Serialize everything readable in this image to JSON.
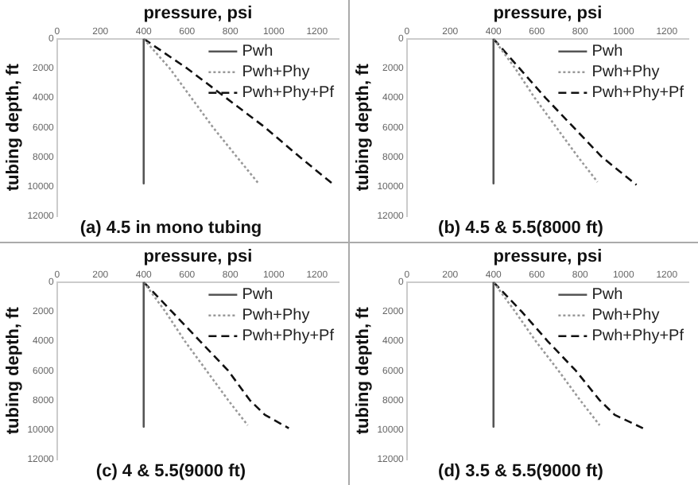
{
  "chart_data": [
    {
      "type": "line",
      "title": "(a) 4.5 in mono tubing",
      "xlabel": "pressure, psi",
      "ylabel": "tubing depth, ft",
      "xlim": [
        0,
        1300
      ],
      "xticks": [
        0,
        200,
        400,
        600,
        800,
        1000,
        1200
      ],
      "ylim": [
        12000,
        0
      ],
      "yticks": [
        0,
        2000,
        4000,
        6000,
        8000,
        10000,
        12000
      ],
      "grid": false,
      "legend": "top right",
      "marker": "none",
      "series": [
        {
          "name": "Pwh",
          "color": "#555555",
          "line_style": "solid",
          "x": [
            400,
            400
          ],
          "values": [
            0,
            9800
          ]
        },
        {
          "name": "Pwh+Phy",
          "color": "#999999",
          "line_style": "dotted",
          "x": [
            400,
            520,
            620,
            720,
            830,
            930
          ],
          "values": [
            0,
            2000,
            4000,
            6000,
            8000,
            9800
          ]
        },
        {
          "name": "Pwh+Phy+Pf",
          "color": "#111111",
          "line_style": "dashed",
          "x": [
            400,
            600,
            780,
            960,
            1120,
            1270
          ],
          "values": [
            0,
            2000,
            4000,
            6000,
            8000,
            9800
          ]
        }
      ]
    },
    {
      "type": "line",
      "title": "(b) 4.5 & 5.5(8000 ft)",
      "xlabel": "pressure, psi",
      "ylabel": "tubing depth, ft",
      "xlim": [
        0,
        1300
      ],
      "xticks": [
        0,
        200,
        400,
        600,
        800,
        1000,
        1200
      ],
      "ylim": [
        12000,
        0
      ],
      "yticks": [
        0,
        2000,
        4000,
        6000,
        8000,
        10000,
        12000
      ],
      "grid": false,
      "legend": "top right",
      "marker": "none",
      "series": [
        {
          "name": "Pwh",
          "color": "#555555",
          "line_style": "solid",
          "x": [
            400,
            400
          ],
          "values": [
            0,
            9800
          ]
        },
        {
          "name": "Pwh+Phy",
          "color": "#999999",
          "line_style": "dotted",
          "x": [
            400,
            500,
            590,
            690,
            790,
            880
          ],
          "values": [
            0,
            2000,
            4000,
            6000,
            8000,
            9700
          ]
        },
        {
          "name": "Pwh+Phy+Pf",
          "color": "#111111",
          "line_style": "dashed",
          "x": [
            400,
            520,
            640,
            770,
            900,
            1060
          ],
          "values": [
            0,
            2000,
            4000,
            6000,
            8000,
            9900
          ]
        }
      ]
    },
    {
      "type": "line",
      "title": "(c) 4 & 5.5(9000 ft)",
      "xlabel": "pressure, psi",
      "ylabel": "tubing depth, ft",
      "xlim": [
        0,
        1300
      ],
      "xticks": [
        0,
        200,
        400,
        600,
        800,
        1000,
        1200
      ],
      "ylim": [
        12000,
        0
      ],
      "yticks": [
        0,
        2000,
        4000,
        6000,
        8000,
        10000,
        12000
      ],
      "grid": false,
      "legend": "top right",
      "marker": "none",
      "series": [
        {
          "name": "Pwh",
          "color": "#555555",
          "line_style": "solid",
          "x": [
            400,
            400
          ],
          "values": [
            0,
            9800
          ]
        },
        {
          "name": "Pwh+Phy",
          "color": "#999999",
          "line_style": "dotted",
          "x": [
            400,
            500,
            590,
            690,
            790,
            880
          ],
          "values": [
            0,
            2000,
            4000,
            6000,
            8000,
            9700
          ]
        },
        {
          "name": "Pwh+Phy+Pf",
          "color": "#111111",
          "line_style": "dashed",
          "x": [
            400,
            530,
            660,
            790,
            890,
            960,
            1070
          ],
          "values": [
            0,
            2000,
            4000,
            6000,
            8000,
            9000,
            9900
          ]
        }
      ]
    },
    {
      "type": "line",
      "title": "(d) 3.5 & 5.5(9000 ft)",
      "xlabel": "pressure, psi",
      "ylabel": "tubing depth, ft",
      "xlim": [
        0,
        1300
      ],
      "xticks": [
        0,
        200,
        400,
        600,
        800,
        1000,
        1200
      ],
      "ylim": [
        12000,
        0
      ],
      "yticks": [
        0,
        2000,
        4000,
        6000,
        8000,
        10000,
        12000
      ],
      "grid": false,
      "legend": "top right",
      "marker": "none",
      "series": [
        {
          "name": "Pwh",
          "color": "#555555",
          "line_style": "solid",
          "x": [
            400,
            400
          ],
          "values": [
            0,
            9800
          ]
        },
        {
          "name": "Pwh+Phy",
          "color": "#999999",
          "line_style": "dotted",
          "x": [
            400,
            500,
            595,
            700,
            800,
            890
          ],
          "values": [
            0,
            2000,
            4000,
            6000,
            8000,
            9700
          ]
        },
        {
          "name": "Pwh+Phy+Pf",
          "color": "#111111",
          "line_style": "dashed",
          "x": [
            400,
            530,
            650,
            780,
            890,
            960,
            1090
          ],
          "values": [
            0,
            2000,
            4000,
            6000,
            8000,
            9000,
            9900
          ]
        }
      ]
    }
  ]
}
